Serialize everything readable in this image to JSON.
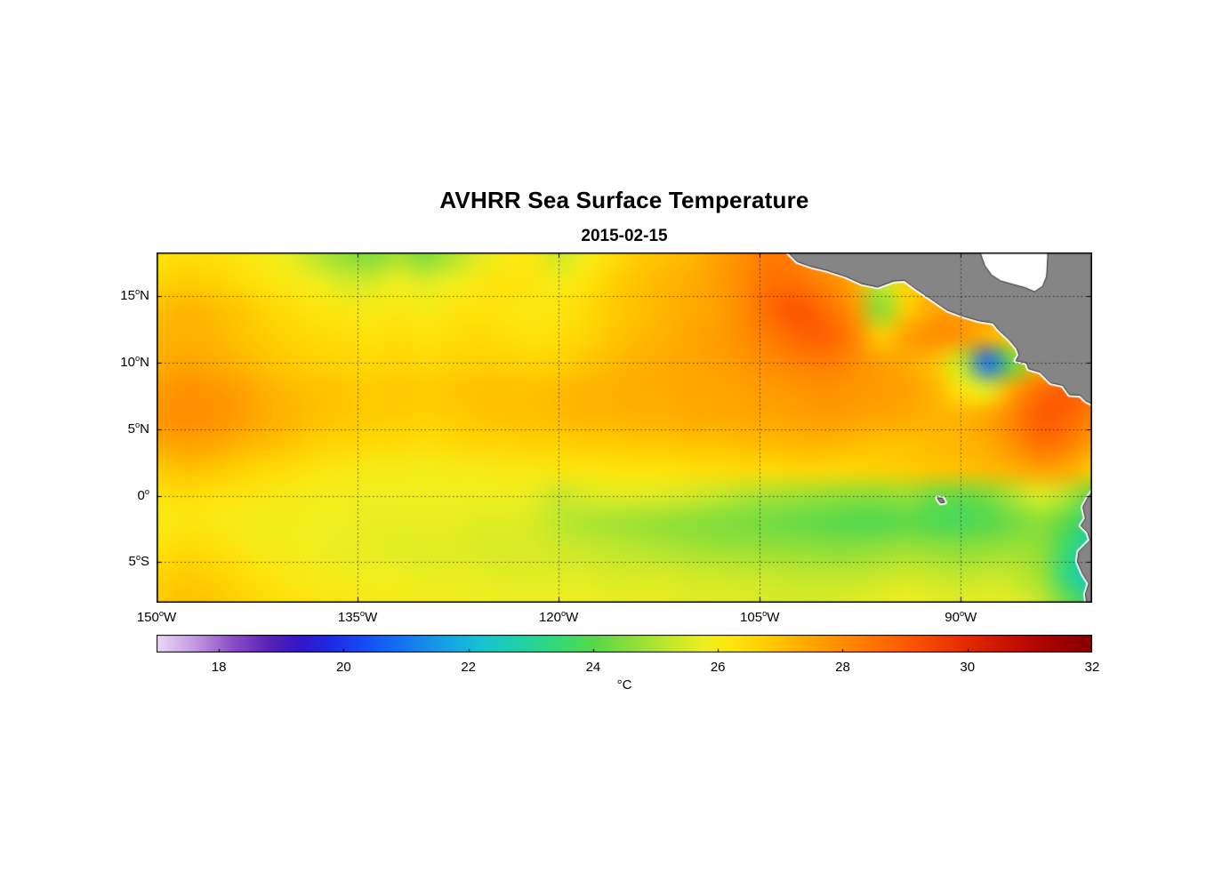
{
  "title": "AVHRR Sea Surface Temperature",
  "subtitle": "2015-02-15",
  "axes": {
    "deg_symbol": "o",
    "x_ticks": [
      {
        "num": "150",
        "hemi": "W",
        "lon": -150
      },
      {
        "num": "135",
        "hemi": "W",
        "lon": -135
      },
      {
        "num": "120",
        "hemi": "W",
        "lon": -120
      },
      {
        "num": "105",
        "hemi": "W",
        "lon": -105
      },
      {
        "num": "90",
        "hemi": "W",
        "lon": -90
      }
    ],
    "y_ticks": [
      {
        "num": "15",
        "hemi": "N",
        "lat": 15
      },
      {
        "num": "10",
        "hemi": "N",
        "lat": 10
      },
      {
        "num": "5",
        "hemi": "N",
        "lat": 5
      },
      {
        "num": "0",
        "hemi": "",
        "lat": 0
      },
      {
        "num": "5",
        "hemi": "S",
        "lat": -5
      }
    ]
  },
  "colorbar": {
    "label": "°C",
    "min": 17,
    "max": 32,
    "tick_values": [
      18,
      20,
      22,
      24,
      26,
      28,
      30,
      32
    ],
    "tick_labels": [
      "18",
      "20",
      "22",
      "24",
      "26",
      "28",
      "30",
      "32"
    ],
    "stops": [
      [
        17.0,
        "#ead9f5"
      ],
      [
        17.6,
        "#c49ae3"
      ],
      [
        18.2,
        "#8d4fc9"
      ],
      [
        18.8,
        "#5a22b5"
      ],
      [
        19.3,
        "#3316c9"
      ],
      [
        19.8,
        "#1f2ae6"
      ],
      [
        20.4,
        "#1551f5"
      ],
      [
        21.0,
        "#1578f0"
      ],
      [
        21.6,
        "#15a0e6"
      ],
      [
        22.2,
        "#15c3d2"
      ],
      [
        22.8,
        "#1fd2a8"
      ],
      [
        23.4,
        "#33d878"
      ],
      [
        24.0,
        "#56d84c"
      ],
      [
        24.6,
        "#8bde39"
      ],
      [
        25.2,
        "#c0e72d"
      ],
      [
        25.8,
        "#f0ee1f"
      ],
      [
        26.3,
        "#ffe30a"
      ],
      [
        26.8,
        "#ffcc00"
      ],
      [
        27.4,
        "#ffaa00"
      ],
      [
        28.0,
        "#ff8c00"
      ],
      [
        28.6,
        "#ff6e00"
      ],
      [
        29.2,
        "#fa5000"
      ],
      [
        29.8,
        "#ea3200"
      ],
      [
        30.4,
        "#d41a00"
      ],
      [
        31.0,
        "#b80800"
      ],
      [
        31.6,
        "#9a0000"
      ],
      [
        32.0,
        "#860000"
      ]
    ]
  },
  "chart_data": {
    "type": "heatmap",
    "title": "AVHRR Sea Surface Temperature",
    "date": "2015-02-15",
    "units": "°C",
    "colorbar_range": [
      17,
      32
    ],
    "lon_range": [
      -150,
      -80.2
    ],
    "lat_range": [
      -8.05,
      18.3
    ],
    "graticule_lons": [
      -135,
      -120,
      -105,
      -90
    ],
    "graticule_lats": [
      15,
      10,
      5,
      0,
      -5
    ],
    "lons": [
      -150,
      -148,
      -146,
      -144,
      -142,
      -140,
      -138,
      -136,
      -134,
      -132,
      -130,
      -128,
      -126,
      -124,
      -122,
      -120,
      -118,
      -116,
      -114,
      -112,
      -110,
      -108,
      -106,
      -104,
      -102,
      -100,
      -98,
      -96,
      -94,
      -92,
      -90,
      -88,
      -86,
      -84,
      -82,
      -80
    ],
    "lats": [
      18,
      16,
      14,
      12,
      10,
      8,
      6,
      4,
      2,
      0,
      -2,
      -4,
      -6,
      -8
    ],
    "sst": [
      [
        26.3,
        26.4,
        26.4,
        26.2,
        26.0,
        25.7,
        25.1,
        24.7,
        24.5,
        24.9,
        24.5,
        25.0,
        25.6,
        26.0,
        26.1,
        25.4,
        25.9,
        26.4,
        26.8,
        27.0,
        27.2,
        27.6,
        28.0,
        28.4,
        28.2,
        27.8,
        27.2,
        27.0,
        27.0,
        27.0,
        27.0,
        27.0,
        27.0,
        27.0,
        27.0,
        27.0
      ],
      [
        26.6,
        26.8,
        26.7,
        26.5,
        26.3,
        26.1,
        25.8,
        25.5,
        25.5,
        25.8,
        25.6,
        25.8,
        26.1,
        26.3,
        26.2,
        26.0,
        26.3,
        26.7,
        27.0,
        27.2,
        27.4,
        27.7,
        28.1,
        28.6,
        28.5,
        28.1,
        27.5,
        25.2,
        26.6,
        27.2,
        27.2,
        27.2,
        27.2,
        27.2,
        27.2,
        27.2
      ],
      [
        27.0,
        27.2,
        27.1,
        26.9,
        26.6,
        26.4,
        26.2,
        26.1,
        26.0,
        26.1,
        26.0,
        26.2,
        26.3,
        26.2,
        26.1,
        26.2,
        26.5,
        26.8,
        27.0,
        27.2,
        27.4,
        27.6,
        28.1,
        28.8,
        29.1,
        28.6,
        27.8,
        24.6,
        26.8,
        27.5,
        27.6,
        27.6,
        27.6,
        27.6,
        27.6,
        27.6
      ],
      [
        27.2,
        27.3,
        27.2,
        27.0,
        26.8,
        26.6,
        26.5,
        26.4,
        26.3,
        26.4,
        26.3,
        26.4,
        26.5,
        26.4,
        26.3,
        26.4,
        26.6,
        26.9,
        27.1,
        27.3,
        27.5,
        27.7,
        28.0,
        28.4,
        28.8,
        28.9,
        28.2,
        26.8,
        27.6,
        28.0,
        27.8,
        27.2,
        26.8,
        27.2,
        27.5,
        27.5
      ],
      [
        27.3,
        27.5,
        27.4,
        27.2,
        27.0,
        26.8,
        26.7,
        26.6,
        26.5,
        26.6,
        26.5,
        26.6,
        26.7,
        26.7,
        26.6,
        26.7,
        26.9,
        27.1,
        27.3,
        27.4,
        27.5,
        27.6,
        27.8,
        28.0,
        28.2,
        28.3,
        28.0,
        27.6,
        27.4,
        27.0,
        25.2,
        20.8,
        24.2,
        27.2,
        27.4,
        27.4
      ],
      [
        27.6,
        27.9,
        27.8,
        27.6,
        27.3,
        27.1,
        27.0,
        26.9,
        26.8,
        26.9,
        26.8,
        26.9,
        27.0,
        27.0,
        27.0,
        27.1,
        27.2,
        27.3,
        27.4,
        27.4,
        27.5,
        27.5,
        27.6,
        27.7,
        27.8,
        27.9,
        27.8,
        27.7,
        27.6,
        27.2,
        26.2,
        25.6,
        27.6,
        28.6,
        28.9,
        28.5
      ],
      [
        27.8,
        28.0,
        27.9,
        27.7,
        27.4,
        27.2,
        27.0,
        26.9,
        26.8,
        26.8,
        26.7,
        26.8,
        26.9,
        27.0,
        27.0,
        27.1,
        27.2,
        27.2,
        27.3,
        27.3,
        27.4,
        27.4,
        27.5,
        27.5,
        27.6,
        27.7,
        27.6,
        27.5,
        27.4,
        27.3,
        27.2,
        27.5,
        28.2,
        29.0,
        28.8,
        28.2
      ],
      [
        27.4,
        27.6,
        27.5,
        27.3,
        27.1,
        26.9,
        26.7,
        26.6,
        26.5,
        26.5,
        26.4,
        26.5,
        26.6,
        26.6,
        26.7,
        26.7,
        26.8,
        26.8,
        26.9,
        26.9,
        27.0,
        27.0,
        27.1,
        27.1,
        27.2,
        27.2,
        27.1,
        27.0,
        27.0,
        27.1,
        27.2,
        27.4,
        28.0,
        28.6,
        28.3,
        27.6
      ],
      [
        26.8,
        27.0,
        26.9,
        26.7,
        26.5,
        26.4,
        26.2,
        26.1,
        26.0,
        26.0,
        25.9,
        26.0,
        26.0,
        26.1,
        26.1,
        26.2,
        26.2,
        26.3,
        26.3,
        26.3,
        26.4,
        26.4,
        26.5,
        26.5,
        26.6,
        26.6,
        26.6,
        26.7,
        26.8,
        26.9,
        27.0,
        27.1,
        27.3,
        27.6,
        27.4,
        26.8
      ],
      [
        26.2,
        26.4,
        26.3,
        26.2,
        26.1,
        26.0,
        25.9,
        25.9,
        25.8,
        25.8,
        25.8,
        25.8,
        25.8,
        25.8,
        25.7,
        25.3,
        25.5,
        25.6,
        25.6,
        25.5,
        25.4,
        25.2,
        25.0,
        24.9,
        24.8,
        24.7,
        24.6,
        24.6,
        24.7,
        24.3,
        24.2,
        24.4,
        25.0,
        25.5,
        25.0,
        24.0
      ],
      [
        26.0,
        26.2,
        26.1,
        26.0,
        25.9,
        25.9,
        25.8,
        25.8,
        25.7,
        25.7,
        25.7,
        25.7,
        25.6,
        25.6,
        25.5,
        25.2,
        25.0,
        24.9,
        24.8,
        24.7,
        24.6,
        24.5,
        24.4,
        24.3,
        24.2,
        24.1,
        24.0,
        24.0,
        24.1,
        23.9,
        23.8,
        24.0,
        24.3,
        24.6,
        24.0,
        23.0
      ],
      [
        26.3,
        26.5,
        26.4,
        26.2,
        26.0,
        25.9,
        25.8,
        25.7,
        25.7,
        25.6,
        25.6,
        25.6,
        25.5,
        25.5,
        25.5,
        25.4,
        25.3,
        25.2,
        25.1,
        25.0,
        24.9,
        24.8,
        24.8,
        24.7,
        24.7,
        24.6,
        24.6,
        24.7,
        24.8,
        24.7,
        24.6,
        24.7,
        24.8,
        24.6,
        23.5,
        22.5
      ],
      [
        26.6,
        26.8,
        26.7,
        26.5,
        26.3,
        26.1,
        26.0,
        25.9,
        25.8,
        25.8,
        25.7,
        25.7,
        25.7,
        25.6,
        25.6,
        25.6,
        25.6,
        25.5,
        25.5,
        25.5,
        25.4,
        25.4,
        25.3,
        25.3,
        25.2,
        25.2,
        25.2,
        25.3,
        25.4,
        25.3,
        25.2,
        25.3,
        25.2,
        24.8,
        23.2,
        22.2
      ],
      [
        26.8,
        27.0,
        26.9,
        26.7,
        26.5,
        26.3,
        26.2,
        26.1,
        26.0,
        26.0,
        25.9,
        25.9,
        25.8,
        25.8,
        25.8,
        25.8,
        25.8,
        25.7,
        25.7,
        25.7,
        25.6,
        25.6,
        25.6,
        25.5,
        25.5,
        25.5,
        25.6,
        25.7,
        25.8,
        25.7,
        25.6,
        25.7,
        25.6,
        25.2,
        24.2,
        23.2
      ]
    ],
    "land_color": "#858585",
    "coast_edge_color": "#2b2b2b",
    "land_polygons": [
      [
        [
          -103.0,
          18.4
        ],
        [
          -102.2,
          17.6
        ],
        [
          -101.2,
          17.25
        ],
        [
          -100.0,
          16.95
        ],
        [
          -98.6,
          16.5
        ],
        [
          -97.4,
          15.95
        ],
        [
          -96.2,
          15.7
        ],
        [
          -95.0,
          16.15
        ],
        [
          -94.2,
          16.2
        ],
        [
          -93.4,
          15.6
        ],
        [
          -92.3,
          14.85
        ],
        [
          -91.0,
          13.95
        ],
        [
          -89.8,
          13.5
        ],
        [
          -88.6,
          13.15
        ],
        [
          -87.6,
          13.0
        ],
        [
          -87.2,
          12.5
        ],
        [
          -86.4,
          11.75
        ],
        [
          -85.85,
          11.1
        ],
        [
          -85.65,
          10.6
        ],
        [
          -85.9,
          10.15
        ],
        [
          -85.1,
          10.0
        ],
        [
          -84.95,
          9.55
        ],
        [
          -84.1,
          9.3
        ],
        [
          -83.3,
          8.5
        ],
        [
          -82.4,
          8.3
        ],
        [
          -81.9,
          7.6
        ],
        [
          -81.1,
          7.55
        ],
        [
          -80.7,
          7.15
        ],
        [
          -80.0,
          6.8
        ],
        [
          -79.6,
          6.8
        ],
        [
          -79.6,
          18.4
        ]
      ],
      [
        [
          -79.6,
          0.7
        ],
        [
          -80.1,
          0.45
        ],
        [
          -80.5,
          -0.1
        ],
        [
          -80.9,
          -0.85
        ],
        [
          -80.7,
          -1.7
        ],
        [
          -81.05,
          -2.25
        ],
        [
          -80.55,
          -2.75
        ],
        [
          -80.35,
          -3.35
        ],
        [
          -81.2,
          -4.2
        ],
        [
          -81.3,
          -4.95
        ],
        [
          -80.9,
          -5.9
        ],
        [
          -80.45,
          -6.6
        ],
        [
          -80.7,
          -7.4
        ],
        [
          -80.6,
          -8.2
        ],
        [
          -79.6,
          -8.2
        ]
      ],
      [
        [
          -91.75,
          -0.15
        ],
        [
          -91.35,
          -0.2
        ],
        [
          -91.2,
          -0.5
        ],
        [
          -91.5,
          -0.55
        ],
        [
          -91.65,
          -0.35
        ]
      ]
    ],
    "nodata_polygons": [
      [
        [
          -88.6,
          18.4
        ],
        [
          -88.2,
          17.3
        ],
        [
          -87.7,
          16.6
        ],
        [
          -87.0,
          16.15
        ],
        [
          -86.1,
          15.9
        ],
        [
          -85.2,
          15.65
        ],
        [
          -84.5,
          15.35
        ],
        [
          -83.9,
          15.75
        ],
        [
          -83.6,
          16.5
        ],
        [
          -83.55,
          17.3
        ],
        [
          -83.5,
          18.4
        ]
      ]
    ]
  }
}
